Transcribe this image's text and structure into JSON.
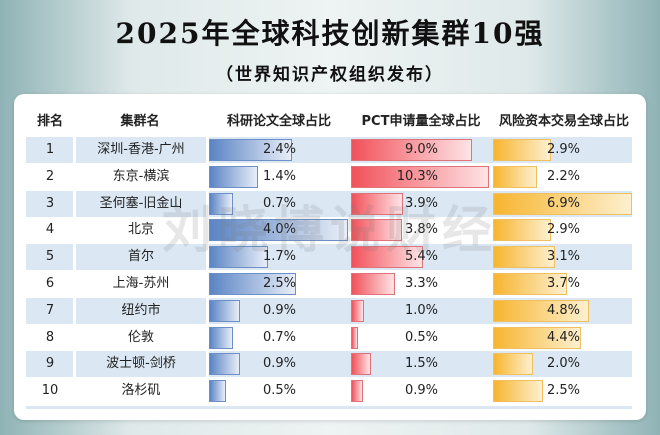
{
  "title": "2025年全球科技创新集群10强",
  "subtitle": "（世界知识产权组织发布）",
  "watermark": "刘晓博说财经",
  "chart_data": {
    "type": "table",
    "columns": [
      "排名",
      "集群名",
      "科研论文全球占比",
      "PCT申请量全球占比",
      "风险资本交易全球占比"
    ],
    "colors": {
      "papers": "#5b84c4",
      "pct": "#f2515a",
      "vc": "#f7b52f",
      "row_alt": "#dbe8f4"
    },
    "rows": [
      {
        "rank": "1",
        "name": "深圳-香港-广州",
        "papers": "2.4%",
        "pct": "9.0%",
        "vc": "2.9%"
      },
      {
        "rank": "2",
        "name": "东京-横滨",
        "papers": "1.4%",
        "pct": "10.3%",
        "vc": "2.2%"
      },
      {
        "rank": "3",
        "name": "圣何塞-旧金山",
        "papers": "0.7%",
        "pct": "3.9%",
        "vc": "6.9%"
      },
      {
        "rank": "4",
        "name": "北京",
        "papers": "4.0%",
        "pct": "3.8%",
        "vc": "2.9%"
      },
      {
        "rank": "5",
        "name": "首尔",
        "papers": "1.7%",
        "pct": "5.4%",
        "vc": "3.1%"
      },
      {
        "rank": "6",
        "name": "上海-苏州",
        "papers": "2.5%",
        "pct": "3.3%",
        "vc": "3.7%"
      },
      {
        "rank": "7",
        "name": "纽约市",
        "papers": "0.9%",
        "pct": "1.0%",
        "vc": "4.8%"
      },
      {
        "rank": "8",
        "name": "伦敦",
        "papers": "0.7%",
        "pct": "0.5%",
        "vc": "4.4%"
      },
      {
        "rank": "9",
        "name": "波士顿-剑桥",
        "papers": "0.9%",
        "pct": "1.5%",
        "vc": "2.0%"
      },
      {
        "rank": "10",
        "name": "洛杉矶",
        "papers": "0.5%",
        "pct": "0.9%",
        "vc": "2.5%"
      }
    ]
  }
}
